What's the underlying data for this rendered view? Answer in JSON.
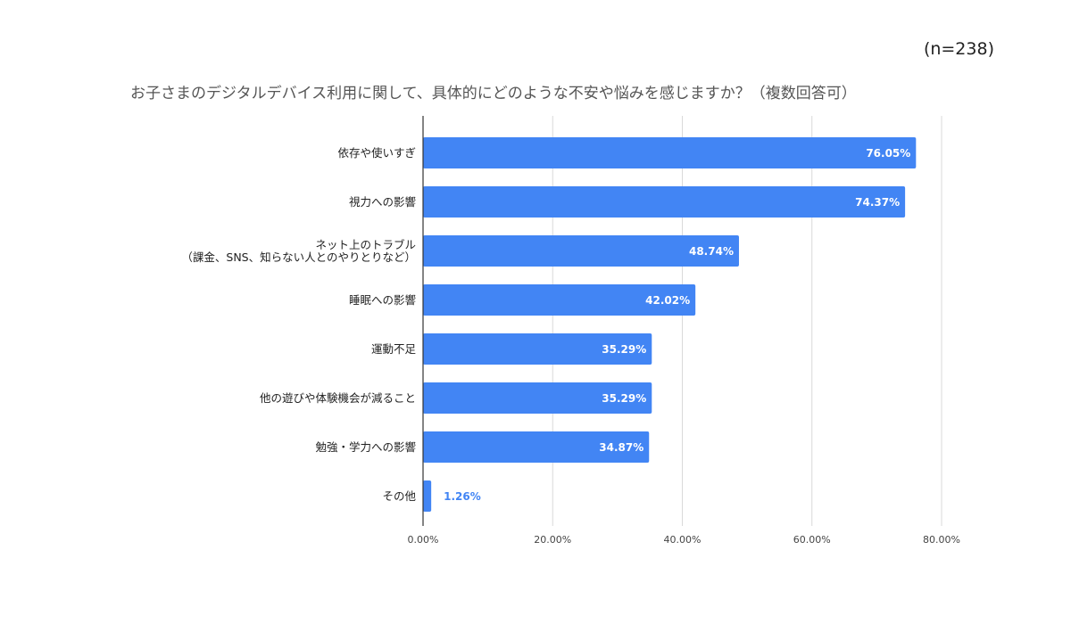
{
  "chart_data": {
    "type": "bar",
    "orientation": "horizontal",
    "title": "お子さまのデジタルデバイス利用に関して、具体的にどのような不安や悩みを感じますか？（複数回答可）",
    "sample_size": "(n=238)",
    "categories": [
      [
        "依存や使いすぎ"
      ],
      [
        "視力への影響"
      ],
      [
        "ネット上のトラブル",
        "（課金、SNS、知らない人とのやりとりなど）"
      ],
      [
        "睡眠への影響"
      ],
      [
        "運動不足"
      ],
      [
        "他の遊びや体験機会が減ること"
      ],
      [
        "勉強・学力への影響"
      ],
      [
        "その他"
      ]
    ],
    "values": [
      76.05,
      74.37,
      48.74,
      42.02,
      35.29,
      35.29,
      34.87,
      1.26
    ],
    "data_labels": [
      "76.05%",
      "74.37%",
      "48.74%",
      "42.02%",
      "35.29%",
      "35.29%",
      "34.87%",
      "1.26%"
    ],
    "xlim": [
      0,
      80
    ],
    "x_ticks": [
      "0.00%",
      "20.00%",
      "40.00%",
      "60.00%",
      "80.00%"
    ],
    "grid": true,
    "bar_color": "#4285f4",
    "outside_label_color": "#4285f4",
    "inside_label_color": "#ffffff"
  }
}
